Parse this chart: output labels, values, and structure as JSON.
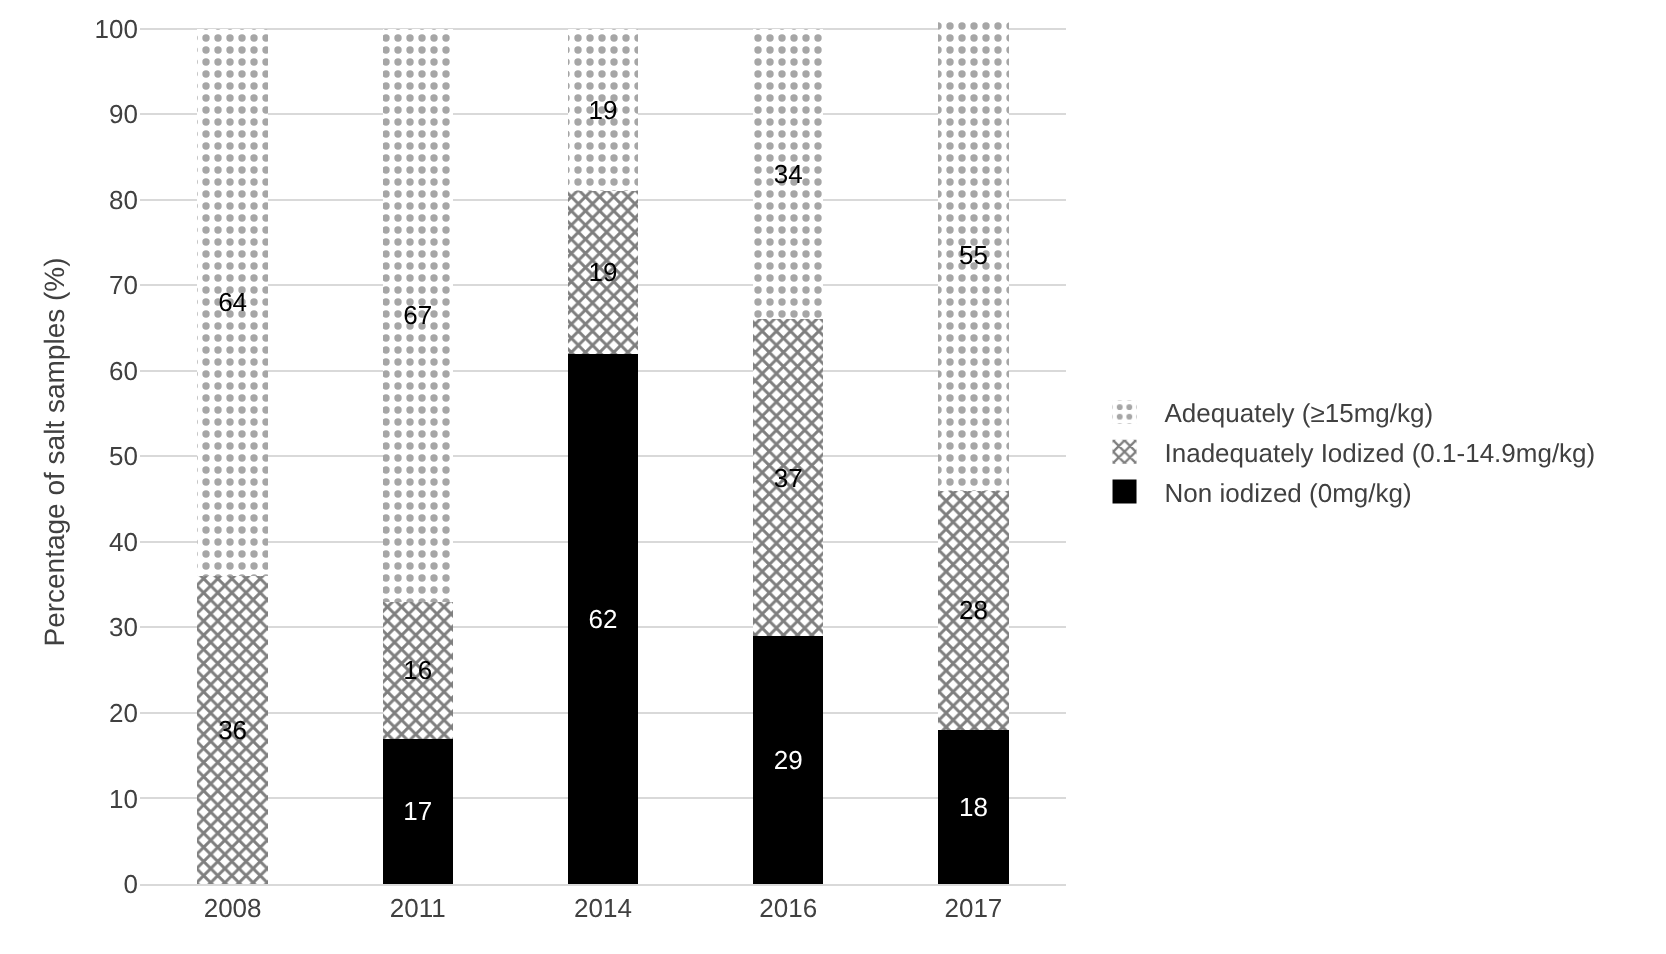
{
  "chart_data": {
    "type": "bar",
    "stacked": true,
    "ylabel": "Percentage of salt samples (%)",
    "categories": [
      "2008",
      "2011",
      "2014",
      "2016",
      "2017"
    ],
    "series": [
      {
        "name": "Non iodized (0mg/kg)",
        "color": "#000000",
        "values": [
          0,
          17,
          62,
          29,
          18
        ],
        "value_labels": [
          null,
          "17",
          "62",
          "29",
          "18"
        ]
      },
      {
        "name": "Inadequately Iodized (0.1-14.9mg/kg)",
        "color": "#7f7f7f",
        "values": [
          36,
          16,
          19,
          37,
          28
        ],
        "value_labels": [
          "36",
          "16",
          "19",
          "37",
          "28"
        ]
      },
      {
        "name": "Adequately (≥15mg/kg)",
        "color": "#a6a6a6",
        "values": [
          64,
          67,
          19,
          34,
          55
        ],
        "value_labels": [
          "64",
          "67",
          "19",
          "34",
          "55"
        ]
      }
    ],
    "ylim": [
      0,
      101
    ],
    "yticks": [
      0,
      10,
      20,
      30,
      40,
      50,
      60,
      70,
      80,
      90,
      100
    ],
    "grid": "y",
    "legend": "right"
  }
}
